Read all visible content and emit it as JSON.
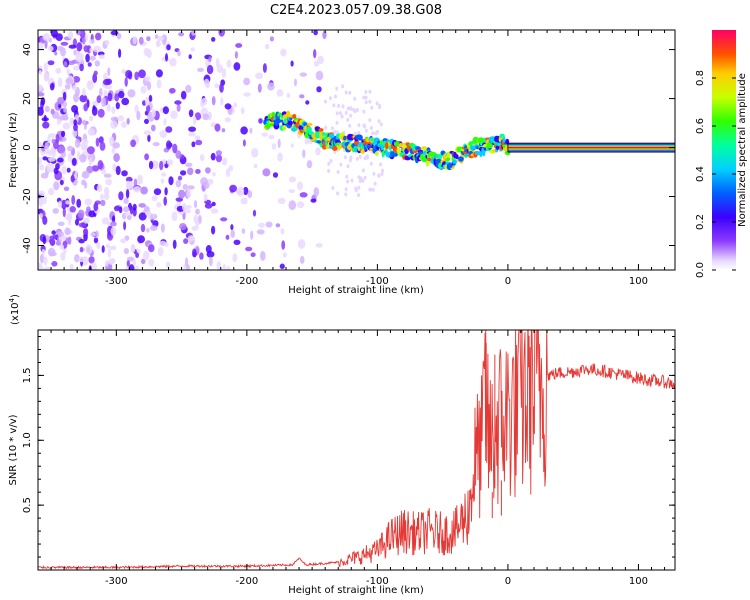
{
  "title": "C2E4.2023.057.09.38.G08",
  "chart_data": [
    {
      "type": "heatmap",
      "xlabel": "Height of straight line (km)",
      "ylabel": "Frequency (Hz)",
      "xlim": [
        -360,
        128
      ],
      "ylim": [
        -50,
        48
      ],
      "xticks": [
        -300,
        -200,
        -100,
        0,
        100
      ],
      "yticks": [
        -40,
        -20,
        0,
        20,
        40
      ],
      "ridge": {
        "x": [
          -185,
          -170,
          -155,
          -140,
          -125,
          -110,
          -95,
          -80,
          -65,
          -55,
          -45,
          -35,
          -25,
          -15,
          -5,
          0,
          128
        ],
        "y": [
          10,
          11,
          8,
          3,
          2,
          1,
          0,
          -1,
          -3,
          -5,
          -5,
          -3,
          0,
          1,
          2,
          0,
          0
        ]
      },
      "colorbar": {
        "label": "Normalized spectral amplitude",
        "ticks": [
          0.0,
          0.2,
          0.4,
          0.6,
          0.8
        ],
        "range": [
          0,
          1
        ]
      }
    },
    {
      "type": "line",
      "xlabel": "Height of straight line (km)",
      "ylabel": "SNR (10 * v/v)",
      "exponent_label": "(x10",
      "exponent_sup": "4",
      "exponent_close": ")",
      "xlim": [
        -360,
        128
      ],
      "ylim": [
        0,
        1.85
      ],
      "xticks": [
        -300,
        -200,
        -100,
        0,
        100
      ],
      "yticks": [
        0.5,
        1.0,
        1.5
      ],
      "ytick_labels": [
        "0.5",
        "1.0",
        "1.5"
      ],
      "series": [
        {
          "color": "#e53935",
          "x": [
            -360,
            -300,
            -250,
            -200,
            -165,
            -160,
            -155,
            -130,
            -115,
            -100,
            -90,
            -80,
            -70,
            -60,
            -50,
            -40,
            -30,
            -25,
            -20,
            -17,
            -15,
            -12,
            -10,
            -5,
            0,
            5,
            10,
            20,
            30,
            40,
            50,
            60,
            70,
            80,
            90,
            100,
            110,
            120,
            128
          ],
          "y": [
            0.02,
            0.02,
            0.03,
            0.03,
            0.04,
            0.09,
            0.04,
            0.06,
            0.1,
            0.15,
            0.25,
            0.3,
            0.28,
            0.3,
            0.28,
            0.3,
            0.45,
            0.85,
            0.95,
            1.4,
            1.0,
            1.0,
            1.05,
            1.15,
            1.2,
            1.25,
            1.3,
            1.4,
            1.5,
            1.52,
            1.53,
            1.55,
            1.54,
            1.52,
            1.5,
            1.48,
            1.46,
            1.45,
            1.43
          ]
        }
      ]
    }
  ]
}
